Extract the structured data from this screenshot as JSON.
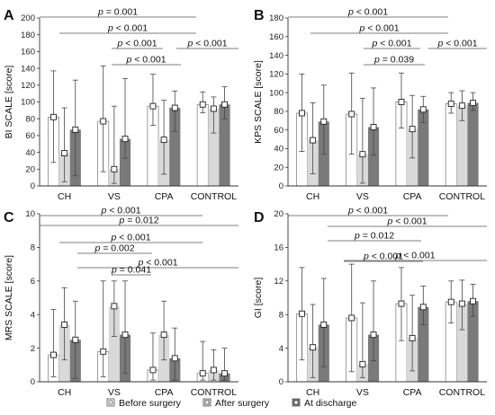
{
  "colors": {
    "before": "#ffffff",
    "after": "#d9d9d9",
    "discharge": "#7a7a7a",
    "axis": "#333333",
    "sigline": "#555555"
  },
  "legend": [
    {
      "key": "before",
      "label": "Before surgery"
    },
    {
      "key": "after",
      "label": "After surgery"
    },
    {
      "key": "discharge",
      "label": "At discharge"
    }
  ],
  "chart_data": [
    {
      "type": "bar",
      "panel": "A",
      "ylabel": "BI SCALE [score]",
      "ylim": [
        0,
        200
      ],
      "yticks": [
        0,
        20,
        40,
        60,
        80,
        100,
        120,
        140,
        160,
        180,
        200
      ],
      "categories": [
        "CH",
        "VS",
        "CPA",
        "CONTROL"
      ],
      "series": [
        {
          "name": "Before surgery",
          "values": [
            82,
            77,
            95,
            97
          ],
          "err_low": [
            28,
            17,
            72,
            87
          ],
          "err_high": [
            137,
            143,
            133,
            112
          ]
        },
        {
          "name": "After surgery",
          "values": [
            39,
            20,
            55,
            92
          ],
          "err_low": [
            5,
            3,
            14,
            63
          ],
          "err_high": [
            93,
            95,
            102,
            106
          ]
        },
        {
          "name": "At discharge",
          "values": [
            67,
            56,
            93,
            97
          ],
          "err_low": [
            12,
            33,
            65,
            80
          ],
          "err_high": [
            126,
            128,
            113,
            118
          ]
        }
      ],
      "sig": [
        {
          "text": "p = 0.001",
          "from": 0,
          "to": 3
        },
        {
          "text": "p < 0.001",
          "from": 0,
          "to": 3
        },
        {
          "text": "p < 0.001",
          "from": 1,
          "to": 2
        },
        {
          "text": "p < 0.001",
          "from": 2,
          "to": 3
        },
        {
          "text": "p < 0.001",
          "from": 1,
          "to": 2
        }
      ]
    },
    {
      "type": "bar",
      "panel": "B",
      "ylabel": "KPS SCALE [score]",
      "ylim": [
        0,
        180
      ],
      "yticks": [
        0,
        20,
        40,
        60,
        80,
        100,
        120,
        140,
        160,
        180
      ],
      "categories": [
        "CH",
        "VS",
        "CPA",
        "CONTROL"
      ],
      "series": [
        {
          "name": "Before surgery",
          "values": [
            78,
            77,
            90,
            88
          ],
          "err_low": [
            37,
            34,
            62,
            78
          ],
          "err_high": [
            120,
            121,
            121,
            100
          ]
        },
        {
          "name": "After surgery",
          "values": [
            49,
            34,
            61,
            86
          ],
          "err_low": [
            13,
            3,
            30,
            70
          ],
          "err_high": [
            89,
            94,
            97,
            102
          ]
        },
        {
          "name": "At discharge",
          "values": [
            69,
            63,
            82,
            89
          ],
          "err_low": [
            34,
            33,
            68,
            81
          ],
          "err_high": [
            108,
            105,
            96,
            100
          ]
        }
      ],
      "sig": [
        {
          "text": "p < 0.001",
          "from": 0,
          "to": 3
        },
        {
          "text": "p < 0.001",
          "from": 0,
          "to": 3
        },
        {
          "text": "p < 0.001",
          "from": 1,
          "to": 2
        },
        {
          "text": "p < 0.001",
          "from": 2,
          "to": 3
        },
        {
          "text": "p = 0.039",
          "from": 1,
          "to": 2
        }
      ]
    },
    {
      "type": "bar",
      "panel": "C",
      "ylabel": "MRS SCALE [score]",
      "ylim": [
        0,
        10
      ],
      "yticks": [
        0,
        2,
        4,
        6,
        8,
        10
      ],
      "categories": [
        "CH",
        "VS",
        "CPA",
        "CONTROL"
      ],
      "series": [
        {
          "name": "Before surgery",
          "values": [
            1.6,
            1.8,
            0.7,
            0.5
          ],
          "err_low": [
            0.3,
            0.3,
            0.1,
            0.1
          ],
          "err_high": [
            4.3,
            6.0,
            2.9,
            2.4
          ]
        },
        {
          "name": "After surgery",
          "values": [
            3.4,
            4.5,
            2.8,
            0.7
          ],
          "err_low": [
            1.3,
            2.7,
            1.3,
            0.1
          ],
          "err_high": [
            5.6,
            6.0,
            4.8,
            1.9
          ]
        },
        {
          "name": "At discharge",
          "values": [
            2.5,
            2.8,
            1.4,
            0.5
          ],
          "err_low": [
            0.2,
            0.5,
            0.1,
            0.1
          ],
          "err_high": [
            4.8,
            6.0,
            3.2,
            2.0
          ]
        }
      ],
      "sig": [
        {
          "text": "p < 0.001",
          "from": 0,
          "to": 3
        },
        {
          "text": "p = 0.012",
          "from": 0,
          "to": 3
        },
        {
          "text": "p < 0.001",
          "from": 0,
          "to": 3
        },
        {
          "text": "p = 0.002",
          "from": 1,
          "to": 2
        },
        {
          "text": "p < 0.001",
          "from": 2,
          "to": 3
        },
        {
          "text": "p = 0.041",
          "from": 1,
          "to": 2
        }
      ]
    },
    {
      "type": "bar",
      "panel": "D",
      "ylabel": "GI [score]",
      "ylim": [
        0,
        20
      ],
      "yticks": [
        0,
        4,
        8,
        12,
        16,
        20
      ],
      "categories": [
        "CH",
        "VS",
        "CPA",
        "CONTROL"
      ],
      "series": [
        {
          "name": "Before surgery",
          "values": [
            8.1,
            7.6,
            9.3,
            9.5
          ],
          "err_low": [
            2.6,
            1.2,
            4.9,
            7.0
          ],
          "err_high": [
            13.6,
            14.0,
            13.6,
            12.0
          ]
        },
        {
          "name": "After surgery",
          "values": [
            4.1,
            2.1,
            5.2,
            9.3
          ],
          "err_low": [
            0.5,
            0.5,
            1.3,
            6.2
          ],
          "err_high": [
            9.2,
            9.4,
            10.3,
            12.1
          ]
        },
        {
          "name": "At discharge",
          "values": [
            6.8,
            5.6,
            8.9,
            9.6
          ],
          "err_low": [
            1.8,
            2.5,
            6.8,
            7.8
          ],
          "err_high": [
            12.3,
            12.0,
            11.4,
            11.6
          ]
        }
      ],
      "sig": [
        {
          "text": "p < 0.001",
          "from": 0,
          "to": 3
        },
        {
          "text": "p < 0.001",
          "from": 1,
          "to": 3
        },
        {
          "text": "p = 0.012",
          "from": 1,
          "to": 2
        },
        {
          "text": "p < 0.001",
          "from": 2,
          "to": 3
        },
        {
          "text": "p < 0.001",
          "from": 1,
          "to": 2
        }
      ]
    }
  ]
}
